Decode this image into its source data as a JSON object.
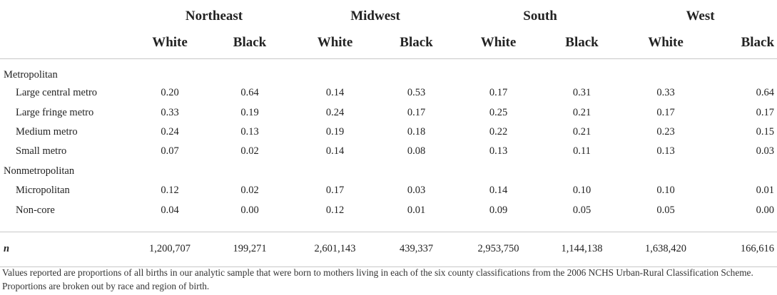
{
  "regions": [
    "Northeast",
    "Midwest",
    "South",
    "West"
  ],
  "races": [
    "White",
    "Black"
  ],
  "groups": [
    {
      "label": "Metropolitan",
      "rows": [
        {
          "label": "Large central metro",
          "values": [
            "0.20",
            "0.64",
            "0.14",
            "0.53",
            "0.17",
            "0.31",
            "0.33",
            "0.64"
          ]
        },
        {
          "label": "Large fringe metro",
          "values": [
            "0.33",
            "0.19",
            "0.24",
            "0.17",
            "0.25",
            "0.21",
            "0.17",
            "0.17"
          ]
        },
        {
          "label": "Medium metro",
          "values": [
            "0.24",
            "0.13",
            "0.19",
            "0.18",
            "0.22",
            "0.21",
            "0.23",
            "0.15"
          ]
        },
        {
          "label": "Small metro",
          "values": [
            "0.07",
            "0.02",
            "0.14",
            "0.08",
            "0.13",
            "0.11",
            "0.13",
            "0.03"
          ]
        }
      ]
    },
    {
      "label": "Nonmetropolitan",
      "rows": [
        {
          "label": "Micropolitan",
          "values": [
            "0.12",
            "0.02",
            "0.17",
            "0.03",
            "0.14",
            "0.10",
            "0.10",
            "0.01"
          ]
        },
        {
          "label": "Non-core",
          "values": [
            "0.04",
            "0.00",
            "0.12",
            "0.01",
            "0.09",
            "0.05",
            "0.05",
            "0.00"
          ]
        }
      ]
    }
  ],
  "n_row": {
    "label": "n",
    "values": [
      "1,200,707",
      "199,271",
      "2,601,143",
      "439,337",
      "2,953,750",
      "1,144,138",
      "1,638,420",
      "166,616"
    ]
  },
  "note": "Values reported are proportions of all births in our analytic sample that were born to mothers living in each of the six county classifications from the 2006 NCHS Urban-Rural Classification Scheme. Proportions are broken out by race and region of birth."
}
